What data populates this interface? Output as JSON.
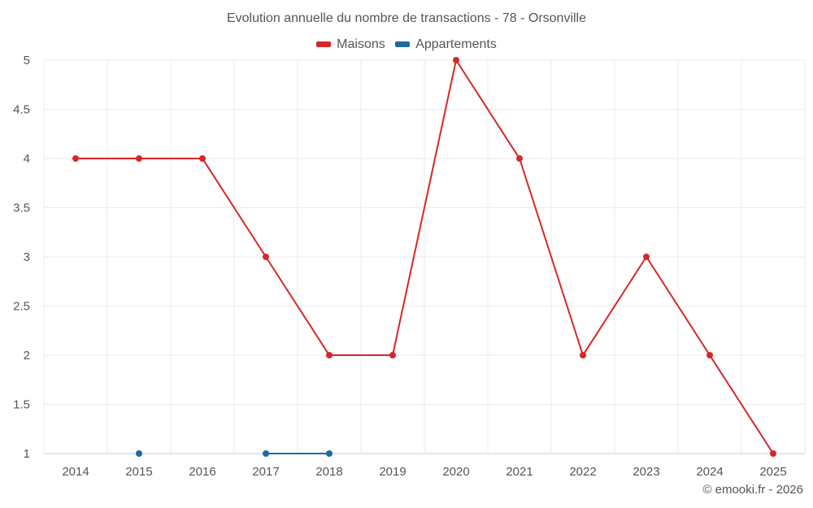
{
  "chart_data": {
    "type": "line",
    "title": "Evolution annuelle du nombre de transactions - 78 - Orsonville",
    "xlabel": "",
    "ylabel": "",
    "categories": [
      "2014",
      "2015",
      "2016",
      "2017",
      "2018",
      "2019",
      "2020",
      "2021",
      "2022",
      "2023",
      "2024",
      "2025"
    ],
    "ylim": [
      1,
      5
    ],
    "yticks": [
      "1",
      "1.5",
      "2",
      "2.5",
      "3",
      "3.5",
      "4",
      "4.5",
      "5"
    ],
    "grid": true,
    "legend_position": "top",
    "series": [
      {
        "name": "Maisons",
        "color": "#d62728",
        "values": [
          4,
          4,
          4,
          3,
          2,
          2,
          5,
          4,
          2,
          3,
          2,
          1
        ]
      },
      {
        "name": "Appartements",
        "color": "#1f6a9e",
        "values": [
          null,
          1,
          null,
          1,
          1,
          null,
          null,
          null,
          null,
          null,
          null,
          null
        ]
      }
    ]
  },
  "credit": "© emooki.fr - 2026"
}
